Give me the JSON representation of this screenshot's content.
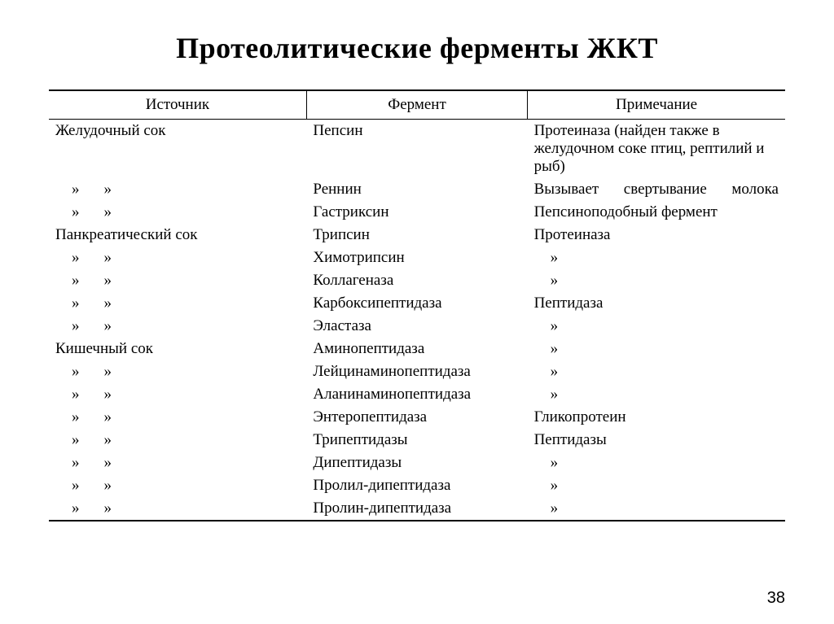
{
  "title": "Протеолитические ферменты ЖКТ",
  "page_number": "38",
  "ditto_glyph": "»",
  "table": {
    "headers": {
      "source": "Источник",
      "enzyme": "Фермент",
      "note": "Примечание"
    },
    "column_widths_pct": [
      35,
      30,
      35
    ],
    "font_size_pt": 19,
    "border_color": "#000000",
    "rows": [
      {
        "source": "Желудочный сок",
        "enzyme": "Пепсин",
        "note": "Протеиназа (найден также в желудочном соке птиц, рептилий и рыб)",
        "note_justify": true
      },
      {
        "source": "»»",
        "enzyme": "Реннин",
        "note": "Вызывает свертывание молока",
        "note_justify": true
      },
      {
        "source": "»»",
        "enzyme": "Гастриксин",
        "note": "Пепсиноподобный фермент"
      },
      {
        "source": "Панкреатический сок",
        "enzyme": "Трипсин",
        "note": "Протеиназа"
      },
      {
        "source": "»»",
        "enzyme": "Химотрипсин",
        "note": "»"
      },
      {
        "source": "»»",
        "enzyme": "Коллагеназа",
        "note": "»"
      },
      {
        "source": "»»",
        "enzyme": "Карбоксипептидаза",
        "note": "Пептидаза"
      },
      {
        "source": "»»",
        "enzyme": "Эластаза",
        "note": "»"
      },
      {
        "source": "Кишечный сок",
        "enzyme": "Аминопептидаза",
        "note": "»"
      },
      {
        "source": "»»",
        "enzyme": "Лейцинаминопептидаза",
        "note": "»"
      },
      {
        "source": "»»",
        "enzyme": "Аланинаминопептидаза",
        "note": "»"
      },
      {
        "source": "»»",
        "enzyme": "Энтеропептидаза",
        "note": "Гликопротеин"
      },
      {
        "source": "»»",
        "enzyme": "Трипептидазы",
        "note": "Пептидазы"
      },
      {
        "source": "»»",
        "enzyme": "Дипептидазы",
        "note": "»"
      },
      {
        "source": "»»",
        "enzyme": "Пролил-дипептидаза",
        "note": "»"
      },
      {
        "source": "»»",
        "enzyme": "Пролин-дипептидаза",
        "note": "»"
      }
    ]
  }
}
